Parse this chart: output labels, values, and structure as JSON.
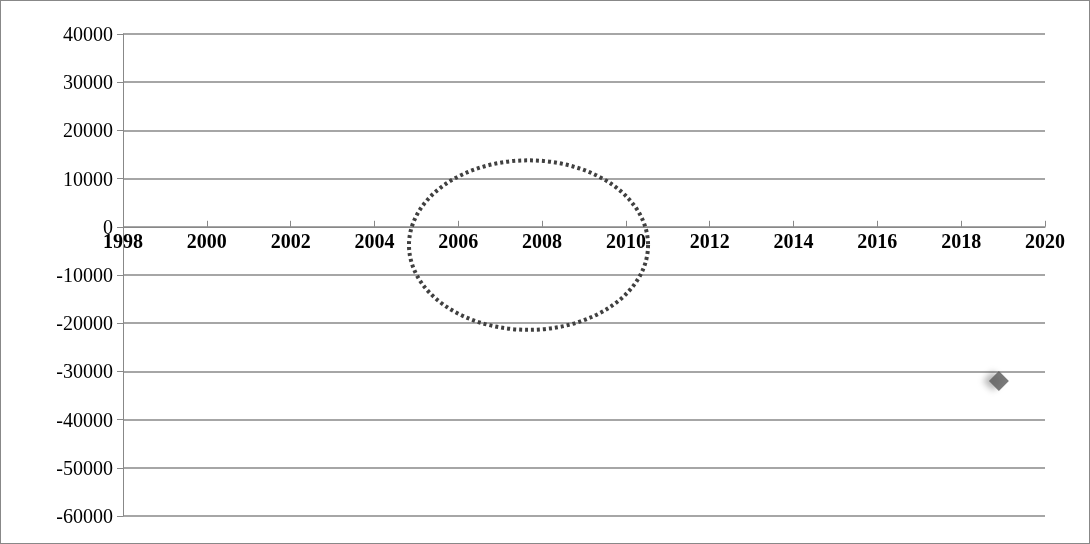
{
  "chart_data": {
    "type": "scatter",
    "x": [
      2018.9
    ],
    "values": [
      -32000
    ],
    "color": "#595959",
    "marker": "diamond",
    "xlim": [
      1998,
      2020
    ],
    "xticks": [
      1998,
      2000,
      2002,
      2004,
      2006,
      2008,
      2010,
      2012,
      2014,
      2016,
      2018,
      2020
    ],
    "ylim": [
      -60000,
      40000
    ],
    "yticks": [
      -60000,
      -50000,
      -40000,
      -30000,
      -20000,
      -10000,
      0,
      10000,
      20000,
      30000,
      40000
    ],
    "grid": "y"
  }
}
